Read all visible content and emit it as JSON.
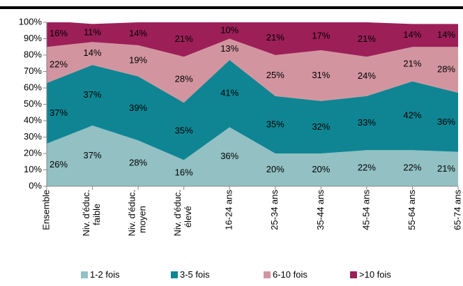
{
  "chart_data": {
    "type": "stacked_area",
    "categories": [
      "Ensemble",
      "Niv. d'éduc.\nfaible",
      "Niv. d'éduc.\nmoyen",
      "Niv. d'éduc.\nélevé",
      "16-24 ans",
      "25-34 ans",
      "35-44 ans",
      "45-54 ans",
      "55-64 ans",
      "65-74 ans"
    ],
    "series": [
      {
        "name": "1-2  fois",
        "color": "#93c0c3",
        "values": [
          26,
          37,
          28,
          16,
          36,
          20,
          20,
          22,
          22,
          21
        ],
        "value_labels": [
          "26%",
          "37%",
          "28%",
          "16%",
          "36%",
          "20%",
          "20%",
          "22%",
          "22%",
          "21%"
        ]
      },
      {
        "name": "3-5 fois",
        "color": "#0f8593",
        "values": [
          37,
          37,
          39,
          35,
          41,
          35,
          32,
          33,
          42,
          36
        ],
        "value_labels": [
          "37%",
          "37%",
          "39%",
          "35%",
          "41%",
          "35%",
          "32%",
          "33%",
          "42%",
          "36%"
        ]
      },
      {
        "name": "6-10 fois",
        "color": "#d2959f",
        "values": [
          22,
          14,
          19,
          28,
          13,
          25,
          31,
          24,
          21,
          28
        ],
        "value_labels": [
          "22%",
          "14%",
          "19%",
          "28%",
          "13%",
          "25%",
          "31%",
          "24%",
          "21%",
          "28%"
        ]
      },
      {
        "name": ">10 fois",
        "color": "#9c1f58",
        "values": [
          16,
          11,
          14,
          21,
          10,
          21,
          17,
          21,
          14,
          14
        ],
        "value_labels": [
          "16%",
          "11%",
          "14%",
          "21%",
          "10%",
          "21%",
          "17%",
          "21%",
          "14%",
          "14%"
        ]
      }
    ],
    "ylim": [
      0,
      100
    ],
    "yticks": [
      {
        "value": 0,
        "label": "0%"
      },
      {
        "value": 10,
        "label": "10%"
      },
      {
        "value": 20,
        "label": "20%"
      },
      {
        "value": 30,
        "label": "30%"
      },
      {
        "value": 40,
        "label": "40%"
      },
      {
        "value": 50,
        "label": "50%"
      },
      {
        "value": 60,
        "label": "60%"
      },
      {
        "value": 70,
        "label": "70%"
      },
      {
        "value": 80,
        "label": "80%"
      },
      {
        "value": 90,
        "label": "90%"
      },
      {
        "value": 100,
        "label": "100%"
      }
    ],
    "legend": "bottom"
  }
}
